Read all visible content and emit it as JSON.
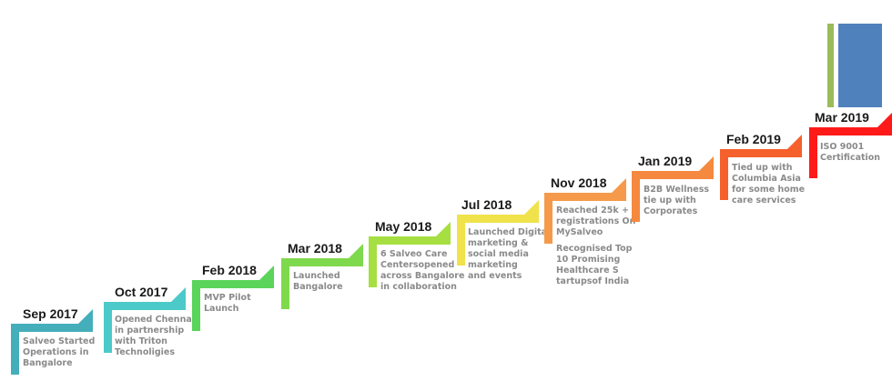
{
  "milestones": [
    {
      "date": "Sep 2017",
      "color": "#45aebb",
      "lines": [
        "Salveo Started",
        "Operations in",
        "Bangalore"
      ]
    },
    {
      "date": "Oct 2017",
      "color": "#4ccac9",
      "lines": [
        "Opened Chennai",
        "in partnership",
        "with Triton",
        "Technoligies"
      ]
    },
    {
      "date": "Feb 2018",
      "color": "#5ad45a",
      "lines": [
        "MVP Pilot",
        "Launch"
      ]
    },
    {
      "date": "Mar 2018",
      "color": "#7fd94d",
      "lines": [
        "Launched",
        "Bangalore"
      ]
    },
    {
      "date": "May 2018",
      "color": "#a6df42",
      "lines": [
        "6 Salveo Care",
        "Centersopened",
        "across Bangalore",
        "in collaboration"
      ]
    },
    {
      "date": "Jul 2018",
      "color": "#f0e24a",
      "lines": [
        "Launched Digital",
        "marketing &",
        "social media",
        "marketing",
        "and events"
      ]
    },
    {
      "date": "Nov 2018",
      "color": "#f59a4a",
      "lines": [
        "Reached 25k +",
        "registrations On",
        "MySalveo",
        "",
        "Recognised Top",
        "10 Promising",
        "Healthcare S",
        "tartupsof India"
      ]
    },
    {
      "date": "Jan 2019",
      "color": "#f5893f",
      "lines": [
        "B2B Wellness",
        "tie up with",
        "Corporates"
      ]
    },
    {
      "date": "Feb 2019",
      "color": "#f5602d",
      "lines": [
        "Tied up with",
        "Columbia Asia",
        "for some home",
        "care services"
      ]
    },
    {
      "date": "Mar 2019",
      "color": "#ff1a1a",
      "lines": [
        "ISO 9001",
        "Certification"
      ]
    }
  ],
  "decor": {
    "green_bar_color": "#9bbb59",
    "blue_box_color": "#4f81bd"
  }
}
